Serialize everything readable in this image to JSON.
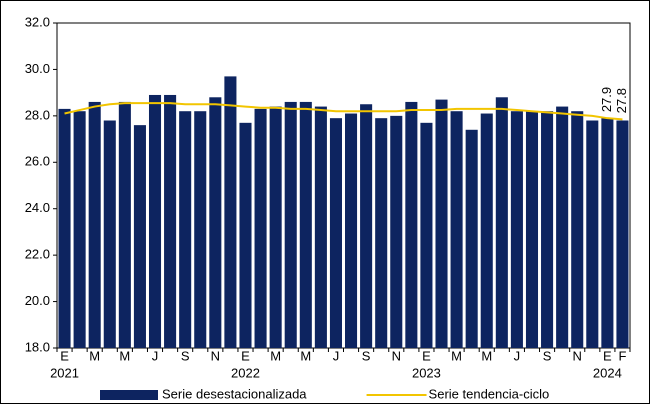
{
  "chart_data": {
    "type": "bar",
    "categories": [
      "E",
      null,
      "M",
      null,
      "M",
      null,
      "J",
      null,
      "S",
      null,
      "N",
      null,
      "E",
      null,
      "M",
      null,
      "M",
      null,
      "J",
      null,
      "S",
      null,
      "N",
      null,
      "E",
      null,
      "M",
      null,
      "M",
      null,
      "J",
      null,
      "S",
      null,
      "N",
      null,
      "E",
      "F"
    ],
    "years": [
      "2021",
      "2022",
      "2023",
      "2024"
    ],
    "series": [
      {
        "name": "Serie desestacionalizada",
        "color": "#0d2460",
        "values": [
          28.3,
          28.2,
          28.6,
          27.8,
          28.6,
          27.6,
          28.9,
          28.9,
          28.2,
          28.2,
          28.8,
          29.7,
          27.7,
          28.3,
          28.4,
          28.6,
          28.6,
          28.4,
          27.9,
          28.1,
          28.5,
          27.9,
          28.0,
          28.6,
          27.7,
          28.7,
          28.2,
          27.4,
          28.1,
          28.8,
          28.2,
          28.2,
          28.2,
          28.4,
          28.2,
          27.8,
          27.9,
          27.8
        ]
      },
      {
        "name": "Serie tendencia-ciclo",
        "color": "#f2c500",
        "type": "line",
        "values": [
          28.1,
          28.25,
          28.4,
          28.5,
          28.55,
          28.55,
          28.55,
          28.55,
          28.5,
          28.5,
          28.5,
          28.45,
          28.4,
          28.35,
          28.35,
          28.3,
          28.3,
          28.25,
          28.2,
          28.2,
          28.2,
          28.2,
          28.2,
          28.25,
          28.25,
          28.25,
          28.3,
          28.3,
          28.3,
          28.3,
          28.25,
          28.2,
          28.15,
          28.1,
          28.05,
          28.0,
          27.9,
          27.85
        ],
        "value_labels": [
          null,
          null,
          null,
          null,
          null,
          null,
          null,
          null,
          null,
          null,
          null,
          null,
          null,
          null,
          null,
          null,
          null,
          null,
          null,
          null,
          null,
          null,
          null,
          null,
          null,
          null,
          null,
          null,
          null,
          null,
          null,
          null,
          null,
          null,
          null,
          null,
          "27.9",
          "27.8"
        ]
      }
    ],
    "ylim": [
      18,
      32
    ],
    "yticks": [
      {
        "value": 18,
        "label": "18.0"
      },
      {
        "value": 20,
        "label": "20.0"
      },
      {
        "value": 22,
        "label": "22.0"
      },
      {
        "value": 24,
        "label": "24.0"
      },
      {
        "value": 26,
        "label": "26.0"
      },
      {
        "value": 28,
        "label": "28.0"
      },
      {
        "value": 30,
        "label": "30.0"
      },
      {
        "value": 32,
        "label": "32.0"
      }
    ]
  }
}
